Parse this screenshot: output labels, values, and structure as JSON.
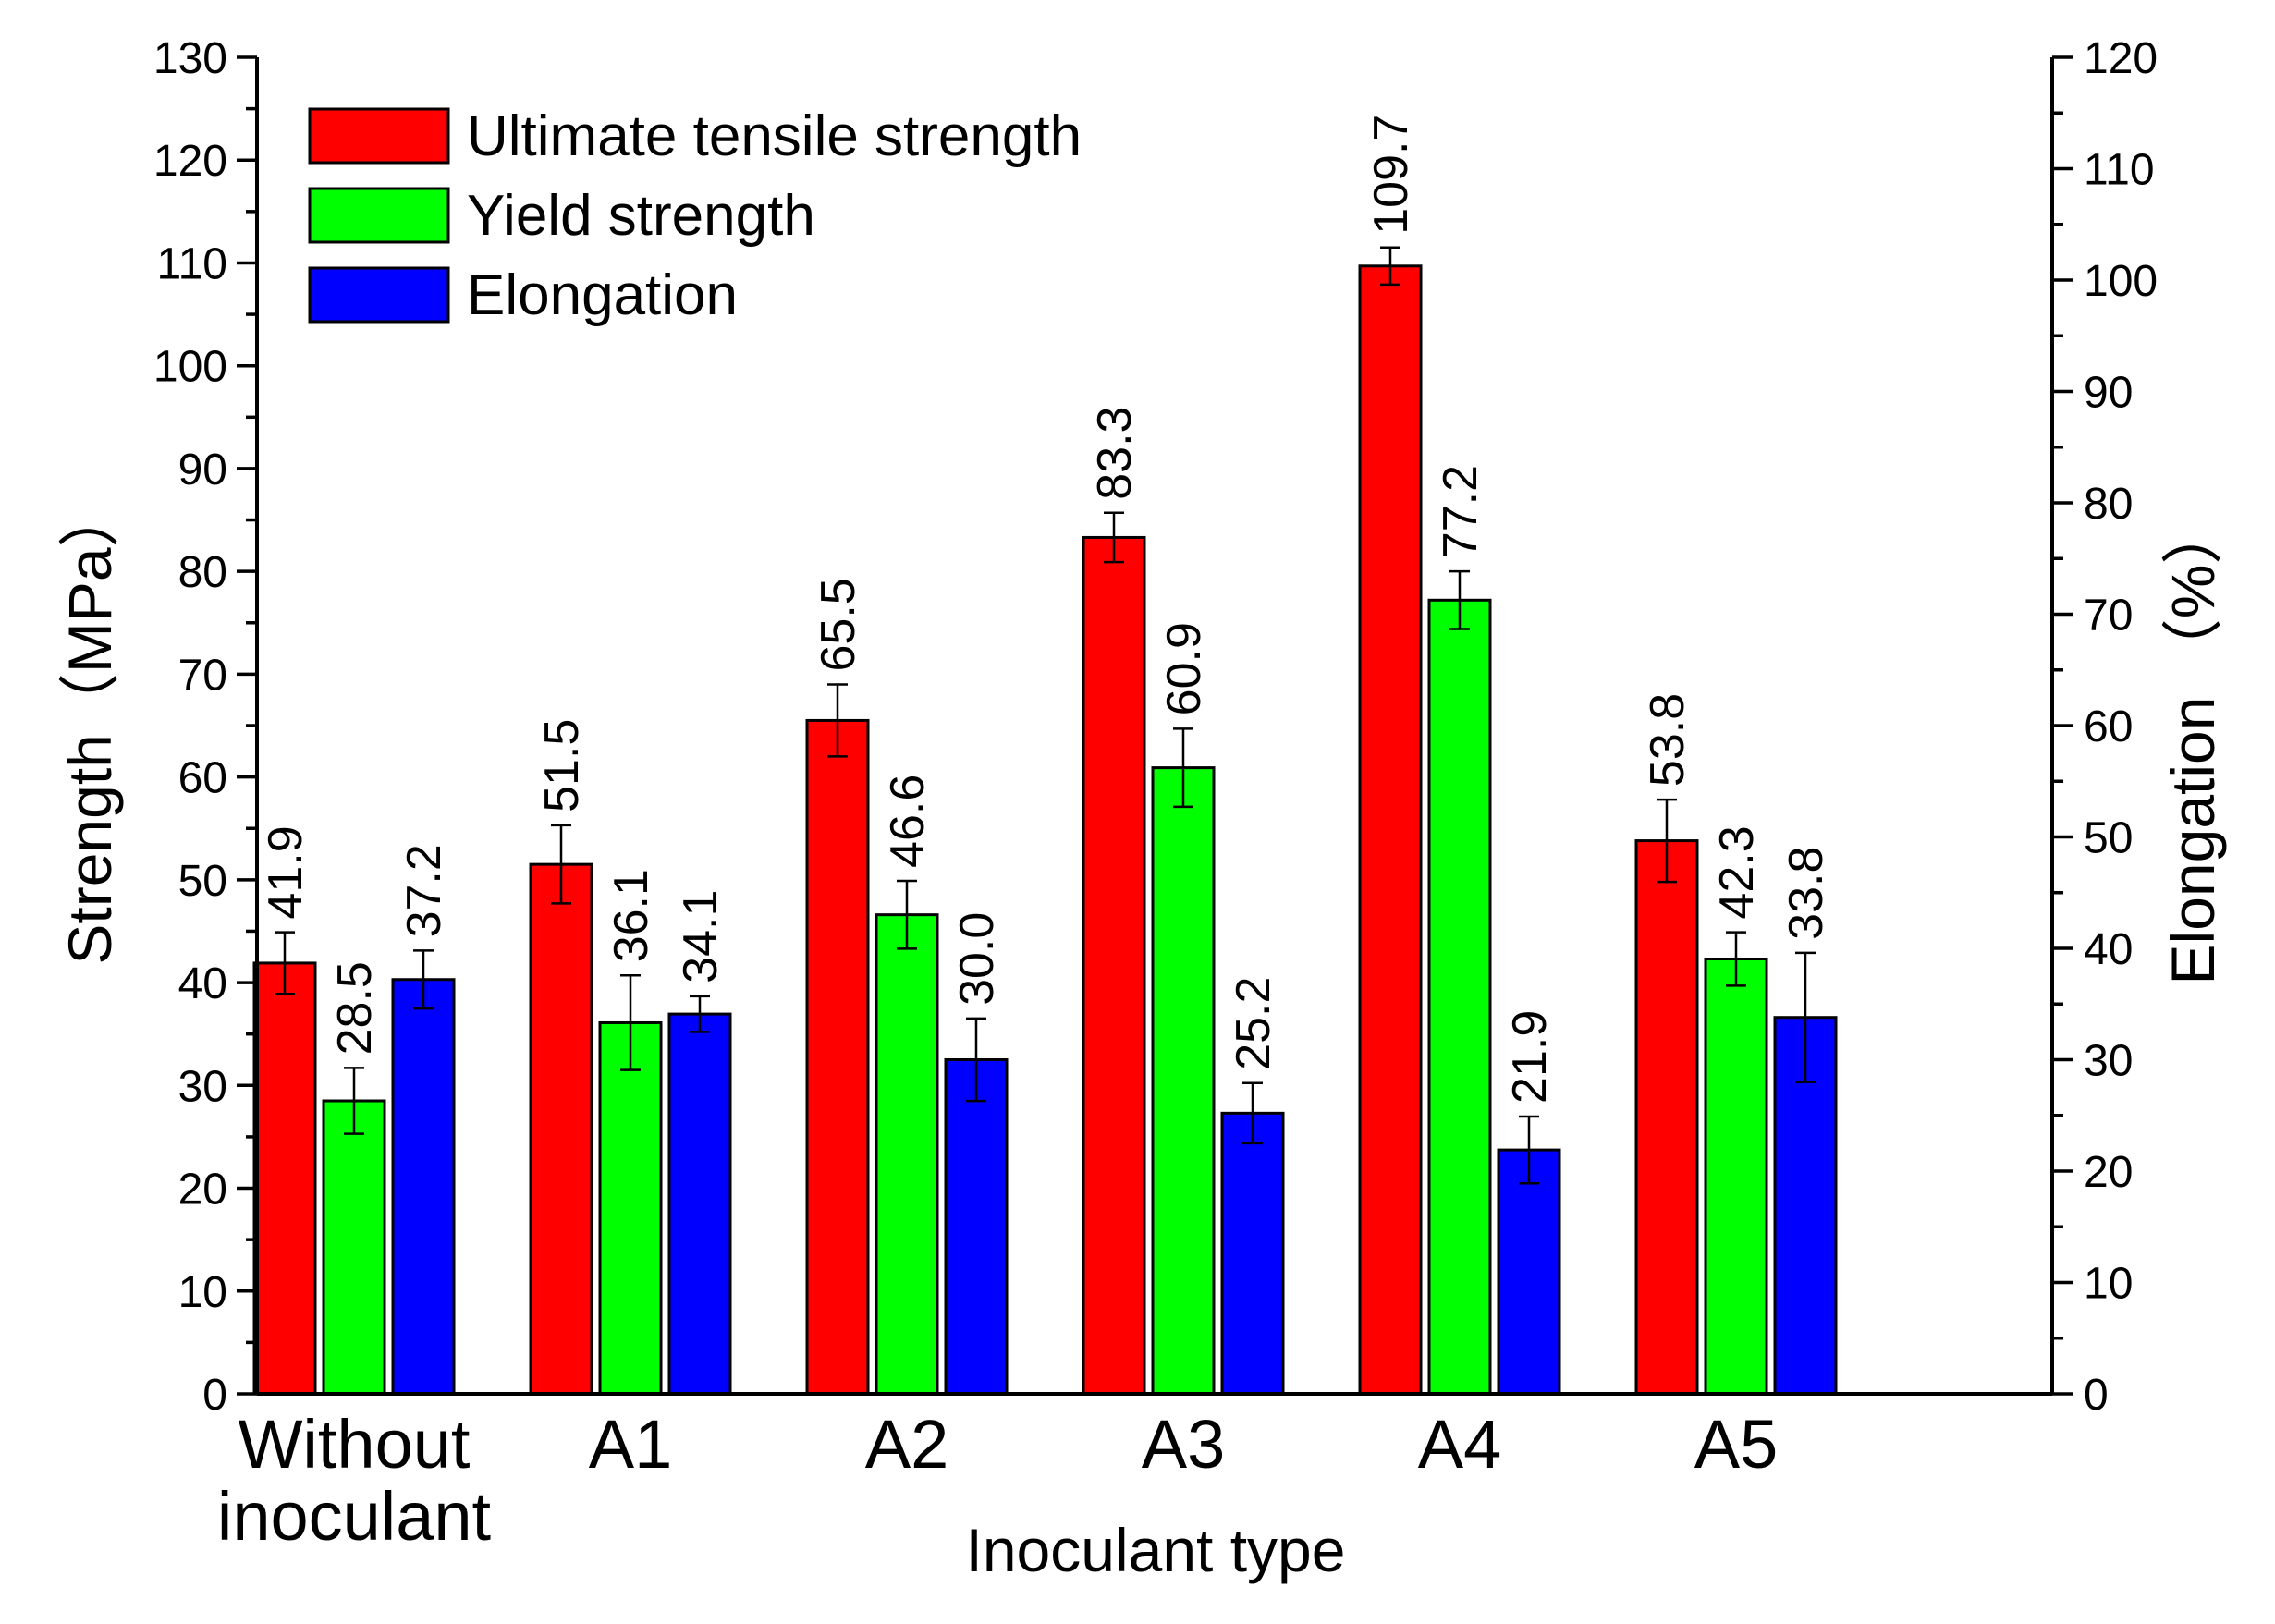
{
  "chart_data": {
    "type": "bar",
    "xlabel": "Inoculant type",
    "ylabel_left": "Strength（MPa）",
    "ylabel_right": "Elongation （%）",
    "categories": [
      {
        "name": "Without inoculant",
        "lines": [
          "Without",
          "inoculant"
        ]
      },
      {
        "name": "A1",
        "lines": [
          "A1"
        ]
      },
      {
        "name": "A2",
        "lines": [
          "A2"
        ]
      },
      {
        "name": "A3",
        "lines": [
          "A3"
        ]
      },
      {
        "name": "A4",
        "lines": [
          "A4"
        ]
      },
      {
        "name": "A5",
        "lines": [
          "A5"
        ]
      }
    ],
    "y_left": {
      "min": 0,
      "max": 130,
      "major": 10,
      "minor": 5
    },
    "y_right": {
      "min": 0,
      "max": 120,
      "major": 10,
      "minor": 5
    },
    "legend_position": "top-left",
    "series": [
      {
        "name": "Ultimate tensile strength",
        "axis": "left",
        "color": "#ff0000",
        "values": [
          41.9,
          51.5,
          65.5,
          83.3,
          109.7,
          53.8
        ],
        "labels": [
          "41.9",
          "51.5",
          "65.5",
          "83.3",
          "109.7",
          "53.8"
        ],
        "errors": [
          3.0,
          3.8,
          3.5,
          2.4,
          1.8,
          4.0
        ]
      },
      {
        "name": "Yield strength",
        "axis": "left",
        "color": "#00ff00",
        "values": [
          28.5,
          36.1,
          46.6,
          60.9,
          77.2,
          42.3
        ],
        "labels": [
          "28.5",
          "36.1",
          "46.6",
          "60.9",
          "77.2",
          "42.3"
        ],
        "errors": [
          3.2,
          4.6,
          3.3,
          3.8,
          2.8,
          2.6
        ]
      },
      {
        "name": "Elongation",
        "axis": "right",
        "color": "#0000ff",
        "values": [
          37.2,
          34.1,
          30.0,
          25.2,
          21.9,
          33.8
        ],
        "labels": [
          "37.2",
          "34.1",
          "30.0",
          "25.2",
          "21.9",
          "33.8"
        ],
        "errors": [
          2.6,
          1.6,
          3.7,
          2.7,
          3.0,
          5.8
        ]
      }
    ]
  }
}
